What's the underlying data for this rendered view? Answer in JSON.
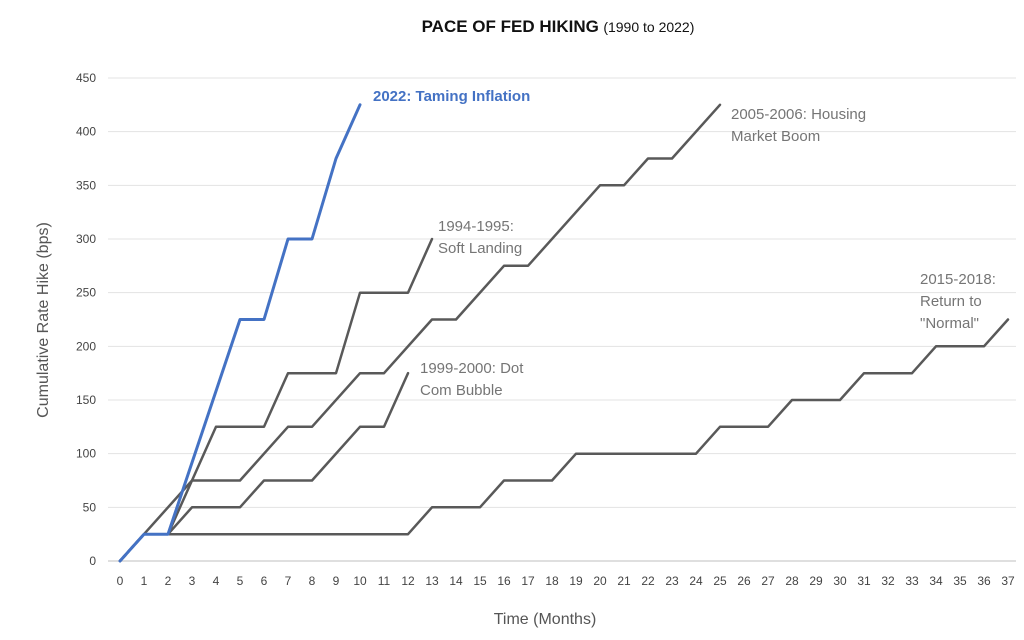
{
  "chart_data": {
    "type": "line",
    "title": "PACE OF FED HIKING",
    "subtitle": "(1990 to 2022)",
    "xlabel": "Time (Months)",
    "ylabel": "Cumulative Rate Hike (bps)",
    "xlim": [
      0,
      37
    ],
    "ylim": [
      0,
      450
    ],
    "x_ticks": [
      0,
      1,
      2,
      3,
      4,
      5,
      6,
      7,
      8,
      9,
      10,
      11,
      12,
      13,
      14,
      15,
      16,
      17,
      18,
      19,
      20,
      21,
      22,
      23,
      24,
      25,
      26,
      27,
      28,
      29,
      30,
      31,
      32,
      33,
      34,
      35,
      36,
      37
    ],
    "y_ticks": [
      0,
      50,
      100,
      150,
      200,
      250,
      300,
      350,
      400,
      450
    ],
    "grid": "horizontal",
    "legend": "none (direct labels)",
    "series": [
      {
        "name": "2022: Taming Inflation",
        "color": "#4472C4",
        "label_lines": [
          "2022:  Taming Inflation"
        ],
        "x": [
          0,
          1,
          2,
          5,
          6,
          7,
          8,
          9,
          10
        ],
        "y": [
          0,
          25,
          25,
          225,
          225,
          300,
          300,
          375,
          425
        ]
      },
      {
        "name": "1994-1995: Soft Landing",
        "color": "#595959",
        "label_lines": [
          "1994-1995:",
          "Soft Landing"
        ],
        "x": [
          0,
          1,
          2,
          4,
          6,
          7,
          9,
          10,
          12,
          13
        ],
        "y": [
          0,
          25,
          25,
          125,
          125,
          175,
          175,
          250,
          250,
          300
        ]
      },
      {
        "name": "1999-2000: Dot Com Bubble",
        "color": "#595959",
        "label_lines": [
          "1999-2000:  Dot",
          "Com Bubble"
        ],
        "x": [
          0,
          1,
          2,
          3,
          5,
          6,
          8,
          10,
          11,
          12
        ],
        "y": [
          0,
          25,
          25,
          50,
          50,
          75,
          75,
          125,
          125,
          175
        ]
      },
      {
        "name": "2005-2006: Housing Market Boom",
        "color": "#595959",
        "label_lines": [
          "2005-2006:  Housing",
          "Market Boom"
        ],
        "x": [
          0,
          3,
          4,
          5,
          7,
          8,
          10,
          11,
          13,
          14,
          16,
          17,
          20,
          21,
          22,
          23,
          25
        ],
        "y": [
          0,
          75,
          75,
          75,
          125,
          125,
          175,
          175,
          225,
          225,
          275,
          275,
          350,
          350,
          375,
          375,
          425
        ]
      },
      {
        "name": "2015-2018: Return to \"Normal\"",
        "color": "#595959",
        "label_lines": [
          "2015-2018:",
          "Return to",
          "\"Normal\""
        ],
        "x": [
          0,
          1,
          12,
          13,
          15,
          16,
          18,
          19,
          24,
          25,
          27,
          28,
          30,
          31,
          33,
          34,
          36,
          37
        ],
        "y": [
          0,
          25,
          25,
          50,
          50,
          75,
          75,
          100,
          100,
          125,
          125,
          150,
          150,
          175,
          175,
          200,
          200,
          225
        ]
      }
    ]
  }
}
